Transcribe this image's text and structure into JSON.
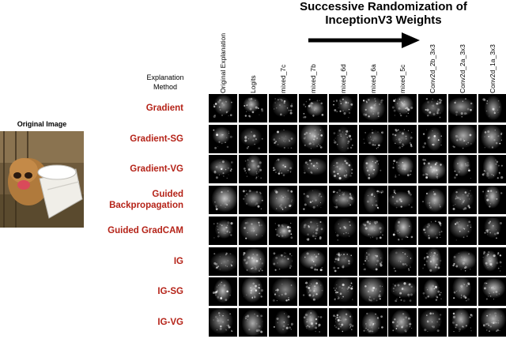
{
  "title_line1": "Successive Randomization of",
  "title_line2": "InceptionV3 Weights",
  "method_header_line1": "Explanation",
  "method_header_line2": "Method",
  "original_image_label": "Original Image",
  "columns": [
    "Original Explanation",
    "Logits",
    "mixed_7c",
    "mixed_7b",
    "mixed_6d",
    "mixed_6a",
    "mixed_5c",
    "Conv2d_2b_3x3",
    "Conv2d_2a_3x3",
    "Conv2d_1a_3x3"
  ],
  "rows": [
    {
      "label": "Gradient"
    },
    {
      "label": "Gradient-SG"
    },
    {
      "label": "Gradient-VG"
    },
    {
      "label": "Guided\nBackpropagation"
    },
    {
      "label": "Guided GradCAM"
    },
    {
      "label": "IG"
    },
    {
      "label": "IG-SG"
    },
    {
      "label": "IG-VG"
    }
  ],
  "colors": {
    "row_label": "#b52318",
    "cell_bg": "#000000",
    "arrow": "#000000"
  }
}
